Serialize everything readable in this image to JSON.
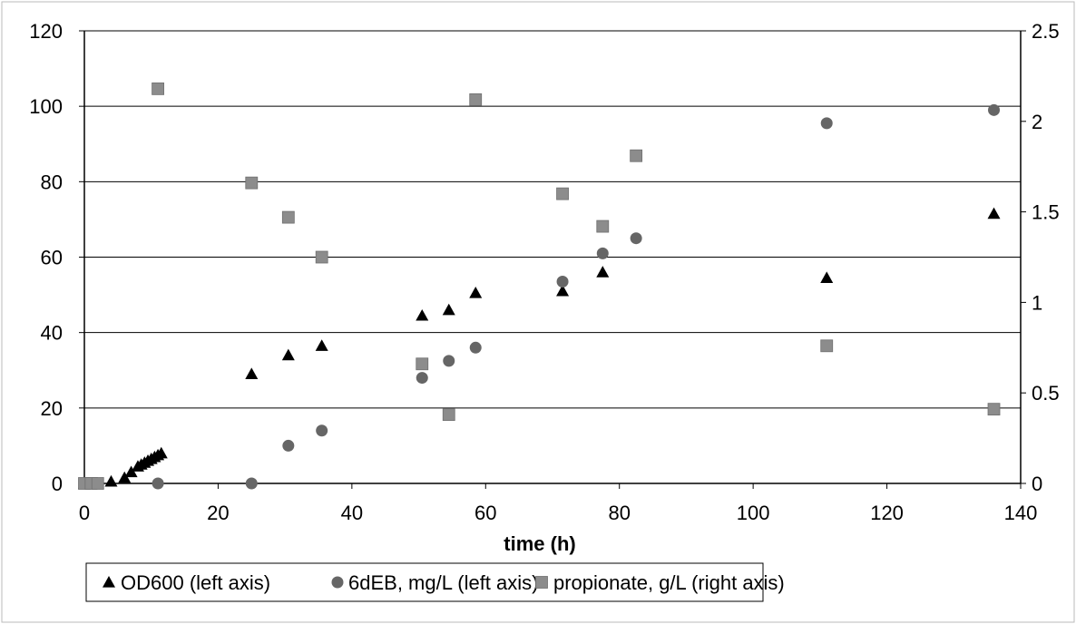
{
  "chart_data": {
    "type": "scatter",
    "title": "",
    "xlabel": "time (h)",
    "ylabel": "",
    "y2label": "",
    "xlim": [
      0,
      140
    ],
    "ylim": [
      0,
      120
    ],
    "y2lim": [
      0,
      2.5
    ],
    "xticks": [
      "0",
      "20",
      "40",
      "60",
      "80",
      "100",
      "120",
      "140"
    ],
    "yticks": [
      "0",
      "20",
      "40",
      "60",
      "80",
      "100",
      "120"
    ],
    "y2ticks": [
      "0",
      "0.5",
      "1",
      "1.5",
      "2",
      "2.5"
    ],
    "grid": "horizontal",
    "legend_position": "bottom",
    "series": [
      {
        "name": "OD600 (left axis)",
        "axis": "left",
        "marker": "triangle",
        "color": "#000000",
        "points": [
          [
            0,
            0
          ],
          [
            1,
            0
          ],
          [
            2,
            0
          ],
          [
            4,
            0.5
          ],
          [
            6,
            1.5
          ],
          [
            7,
            3
          ],
          [
            8,
            4.5
          ],
          [
            8.5,
            5
          ],
          [
            9,
            5.5
          ],
          [
            9.5,
            6
          ],
          [
            10,
            6.5
          ],
          [
            10.5,
            7
          ],
          [
            11,
            7.5
          ],
          [
            11.5,
            8
          ],
          [
            25,
            29
          ],
          [
            30.5,
            34
          ],
          [
            35.5,
            36.5
          ],
          [
            50.5,
            44.5
          ],
          [
            54.5,
            46
          ],
          [
            58.5,
            50.5
          ],
          [
            71.5,
            51
          ],
          [
            77.5,
            56
          ],
          [
            111,
            54.5
          ],
          [
            136,
            71.5
          ]
        ]
      },
      {
        "name": "6dEB, mg/L (left axis)",
        "axis": "left",
        "marker": "circle",
        "color": "#666666",
        "points": [
          [
            0,
            0
          ],
          [
            11,
            0
          ],
          [
            25,
            0
          ],
          [
            30.5,
            10
          ],
          [
            35.5,
            14
          ],
          [
            50.5,
            28
          ],
          [
            54.5,
            32.5
          ],
          [
            58.5,
            36
          ],
          [
            71.5,
            53.5
          ],
          [
            77.5,
            61
          ],
          [
            82.5,
            65
          ],
          [
            111,
            95.5
          ],
          [
            136,
            99
          ]
        ]
      },
      {
        "name": "propionate, g/L (right axis)",
        "axis": "right",
        "marker": "square",
        "color": "#8c8c8c",
        "points": [
          [
            0,
            0
          ],
          [
            1,
            0
          ],
          [
            2,
            0
          ],
          [
            11,
            2.18
          ],
          [
            25,
            1.66
          ],
          [
            30.5,
            1.47
          ],
          [
            35.5,
            1.25
          ],
          [
            50.5,
            0.66
          ],
          [
            54.5,
            0.38
          ],
          [
            58.5,
            2.12
          ],
          [
            71.5,
            1.6
          ],
          [
            77.5,
            1.42
          ],
          [
            82.5,
            1.81
          ],
          [
            111,
            0.76
          ],
          [
            136,
            0.41
          ]
        ]
      }
    ]
  }
}
